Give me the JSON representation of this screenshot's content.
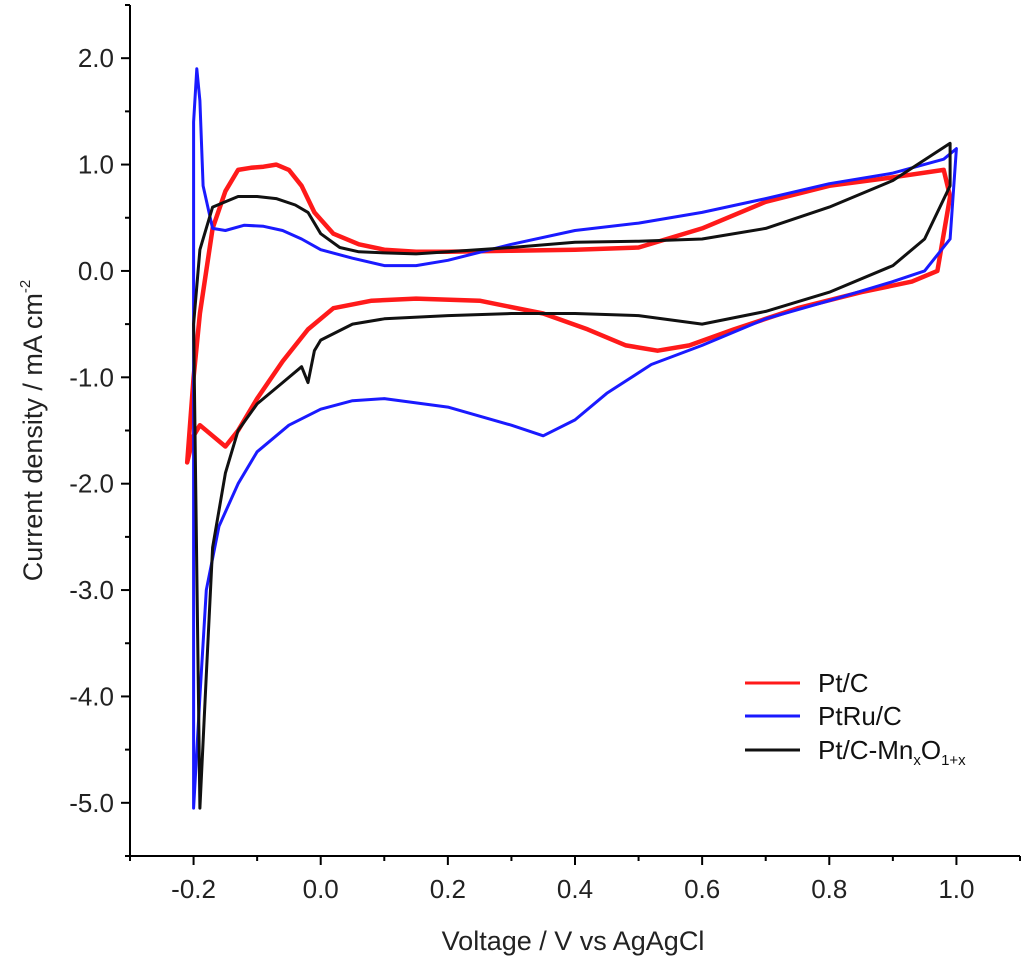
{
  "chart_data": {
    "type": "line",
    "title": "",
    "xlabel": "Voltage / V vs AgAgCl",
    "ylabel": "Current density / mA cm",
    "ylabel_sup": "-2",
    "xlim": [
      -0.3,
      1.1
    ],
    "ylim": [
      -5.5,
      2.5
    ],
    "xticks": [
      -0.2,
      0.0,
      0.2,
      0.4,
      0.6,
      0.8,
      1.0
    ],
    "xtick_labels": [
      "-0.2",
      "0.0",
      "0.2",
      "0.4",
      "0.6",
      "0.8",
      "1.0"
    ],
    "yticks": [
      2.0,
      1.0,
      0.0,
      -1.0,
      -2.0,
      -3.0,
      -4.0,
      -5.0
    ],
    "ytick_labels": [
      "2.0",
      "1.0",
      "0.0",
      "-1.0",
      "-2.0",
      "-3.0",
      "-4.0",
      "-5.0"
    ],
    "grid": false,
    "legend_position": "bottom-right",
    "series": [
      {
        "name": "Pt/C",
        "label": "Pt/C",
        "color": "#ff1a1a",
        "x": [
          -0.21,
          -0.2,
          -0.19,
          -0.17,
          -0.15,
          -0.13,
          -0.11,
          -0.09,
          -0.07,
          -0.05,
          -0.03,
          -0.01,
          0.02,
          0.06,
          0.1,
          0.15,
          0.2,
          0.3,
          0.4,
          0.5,
          0.6,
          0.7,
          0.8,
          0.9,
          0.98,
          0.99,
          0.97,
          0.93,
          0.85,
          0.75,
          0.65,
          0.58,
          0.53,
          0.48,
          0.42,
          0.35,
          0.25,
          0.15,
          0.08,
          0.02,
          -0.02,
          -0.06,
          -0.1,
          -0.13,
          -0.15,
          -0.17,
          -0.19,
          -0.2,
          -0.21
        ],
        "values": [
          -1.8,
          -1.0,
          -0.4,
          0.4,
          0.75,
          0.95,
          0.97,
          0.98,
          1.0,
          0.95,
          0.8,
          0.55,
          0.35,
          0.25,
          0.2,
          0.18,
          0.18,
          0.19,
          0.2,
          0.22,
          0.4,
          0.65,
          0.8,
          0.88,
          0.95,
          0.7,
          0.0,
          -0.1,
          -0.2,
          -0.35,
          -0.55,
          -0.7,
          -0.75,
          -0.7,
          -0.55,
          -0.4,
          -0.28,
          -0.26,
          -0.28,
          -0.35,
          -0.55,
          -0.85,
          -1.2,
          -1.5,
          -1.65,
          -1.55,
          -1.45,
          -1.55,
          -1.8
        ]
      },
      {
        "name": "PtRu/C",
        "label": "PtRu/C",
        "color": "#1a1aff",
        "x": [
          -0.2,
          -0.195,
          -0.19,
          -0.185,
          -0.17,
          -0.15,
          -0.12,
          -0.09,
          -0.06,
          -0.03,
          0.0,
          0.05,
          0.1,
          0.15,
          0.2,
          0.3,
          0.4,
          0.5,
          0.6,
          0.7,
          0.8,
          0.9,
          0.98,
          1.0,
          0.99,
          0.95,
          0.9,
          0.8,
          0.7,
          0.6,
          0.52,
          0.45,
          0.4,
          0.35,
          0.3,
          0.2,
          0.1,
          0.05,
          0.0,
          -0.05,
          -0.1,
          -0.13,
          -0.16,
          -0.18,
          -0.19,
          -0.2
        ],
        "values": [
          1.4,
          1.9,
          1.6,
          0.8,
          0.4,
          0.38,
          0.43,
          0.42,
          0.38,
          0.3,
          0.2,
          0.12,
          0.05,
          0.05,
          0.1,
          0.25,
          0.38,
          0.45,
          0.55,
          0.68,
          0.82,
          0.92,
          1.05,
          1.15,
          0.3,
          0.0,
          -0.1,
          -0.28,
          -0.45,
          -0.7,
          -0.88,
          -1.15,
          -1.4,
          -1.55,
          -1.45,
          -1.28,
          -1.2,
          -1.22,
          -1.3,
          -1.45,
          -1.7,
          -2.0,
          -2.4,
          -3.0,
          -4.0,
          -5.05
        ]
      },
      {
        "name": "Pt/C-MnxO1+x",
        "label": "Pt/C-Mn",
        "label_sub_1": "x",
        "label_mid": "O",
        "label_sub_2": "1+x",
        "color": "#111111",
        "x": [
          -0.2,
          -0.19,
          -0.17,
          -0.15,
          -0.13,
          -0.1,
          -0.07,
          -0.04,
          -0.02,
          0.0,
          0.03,
          0.06,
          0.1,
          0.15,
          0.2,
          0.3,
          0.4,
          0.5,
          0.6,
          0.7,
          0.8,
          0.9,
          0.99,
          0.99,
          0.95,
          0.9,
          0.8,
          0.7,
          0.6,
          0.5,
          0.4,
          0.3,
          0.2,
          0.1,
          0.05,
          0.0,
          -0.01,
          -0.02,
          -0.03,
          -0.06,
          -0.1,
          -0.13,
          -0.15,
          -0.17,
          -0.18,
          -0.19
        ],
        "values": [
          -0.5,
          0.2,
          0.6,
          0.65,
          0.7,
          0.7,
          0.68,
          0.62,
          0.55,
          0.35,
          0.22,
          0.18,
          0.17,
          0.16,
          0.18,
          0.22,
          0.27,
          0.28,
          0.3,
          0.4,
          0.6,
          0.85,
          1.2,
          0.8,
          0.3,
          0.05,
          -0.2,
          -0.38,
          -0.5,
          -0.42,
          -0.4,
          -0.4,
          -0.42,
          -0.45,
          -0.5,
          -0.65,
          -0.75,
          -1.05,
          -0.9,
          -1.05,
          -1.25,
          -1.5,
          -1.9,
          -2.6,
          -3.8,
          -5.05
        ]
      }
    ]
  }
}
